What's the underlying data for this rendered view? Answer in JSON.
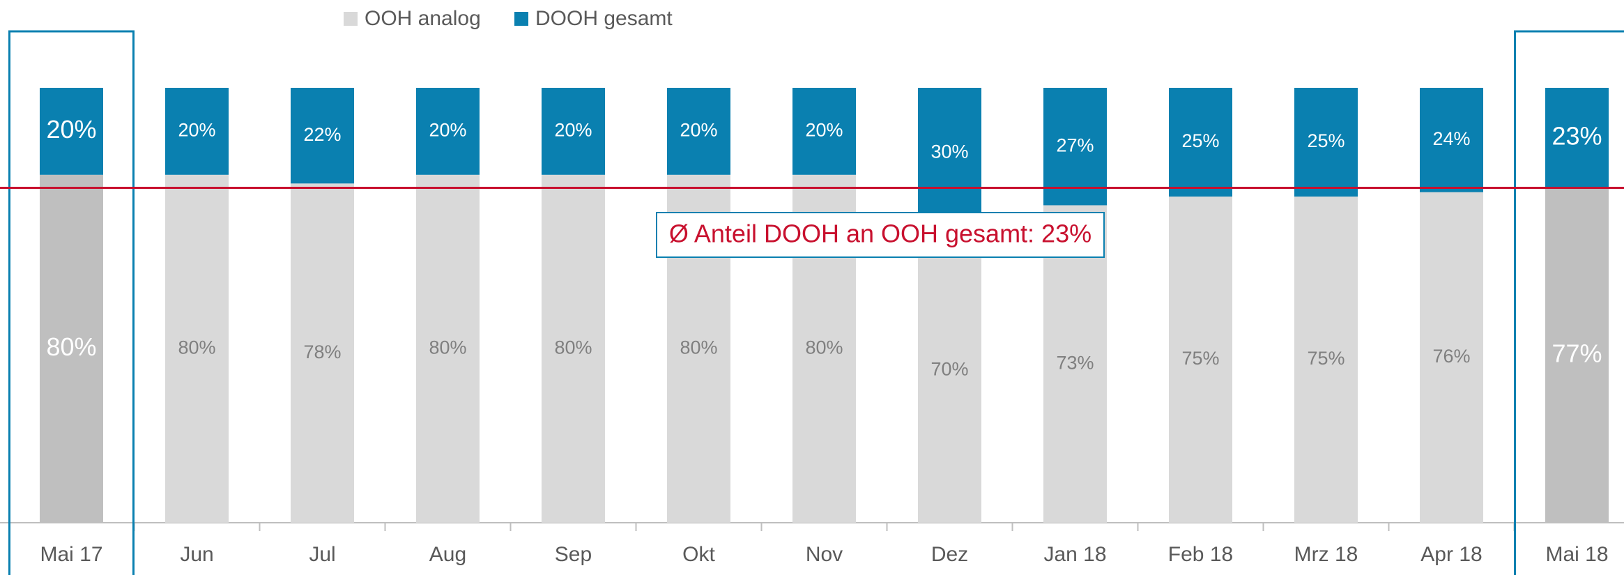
{
  "chart_data": {
    "type": "stacked_bar",
    "categories": [
      "Mai 17",
      "Jun",
      "Jul",
      "Aug",
      "Sep",
      "Okt",
      "Nov",
      "Dez",
      "Jan 18",
      "Feb 18",
      "Mrz 18",
      "Apr 18",
      "Mai 18"
    ],
    "series": [
      {
        "name": "OOH analog",
        "color": "#d9d9d9",
        "highlight_color": "#bfbfbf",
        "values": [
          80,
          80,
          78,
          80,
          80,
          80,
          80,
          70,
          73,
          75,
          75,
          76,
          77
        ],
        "value_labels": [
          "80%",
          "80%",
          "78%",
          "80%",
          "80%",
          "80%",
          "80%",
          "70%",
          "73%",
          "75%",
          "75%",
          "76%",
          "77%"
        ]
      },
      {
        "name": "DOOH gesamt",
        "color": "#0a80b0",
        "highlight_color": "#0a80b0",
        "values": [
          20,
          20,
          22,
          20,
          20,
          20,
          20,
          30,
          27,
          25,
          25,
          24,
          23
        ],
        "value_labels": [
          "20%",
          "20%",
          "22%",
          "20%",
          "20%",
          "20%",
          "20%",
          "30%",
          "27%",
          "25%",
          "25%",
          "24%",
          "23%"
        ]
      }
    ],
    "ylim": [
      0,
      100
    ],
    "highlight_indices": [
      0,
      12
    ],
    "average": {
      "value": 23,
      "label": "Ø Anteil DOOH an OOH gesamt: 23%",
      "color": "#c8102e"
    }
  }
}
